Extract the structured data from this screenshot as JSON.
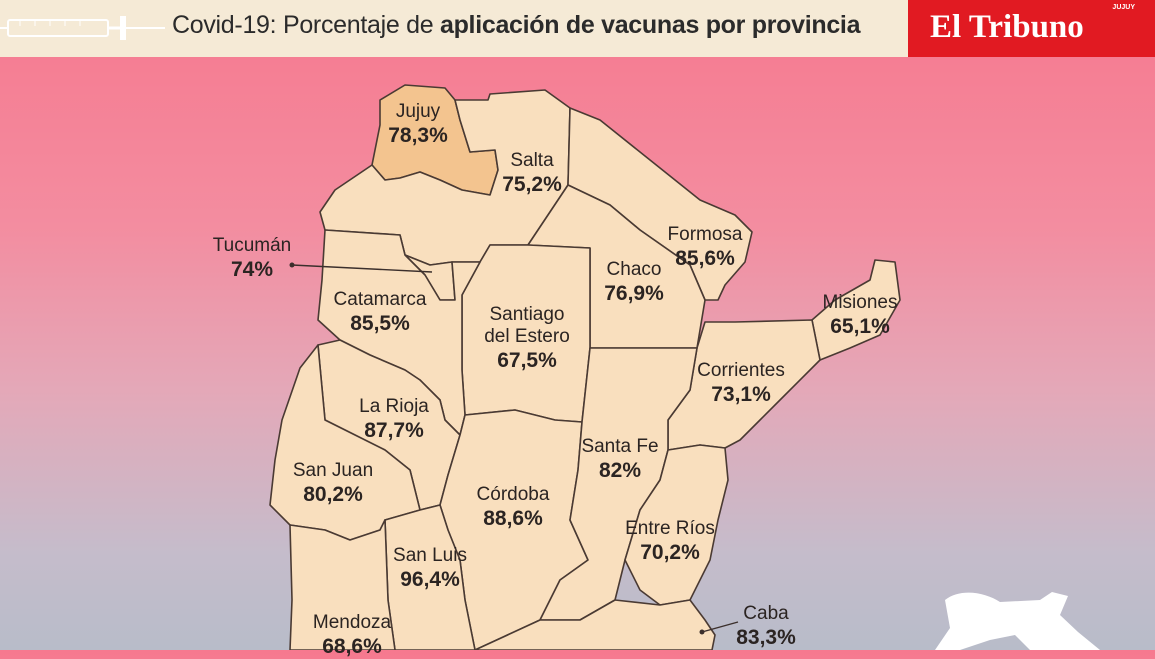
{
  "header": {
    "title_plain": "Covid-19: Porcentaje de ",
    "title_bold": "aplicación de vacunas por provincia",
    "brand": "El Tribuno",
    "brand_tag": "JUJUY",
    "icon": "syringe-icon"
  },
  "colors": {
    "province_fill": "#f9dfbe",
    "highlight_fill": "#f3c48f",
    "border": "#4a3a33",
    "brand_red": "#e11a22"
  },
  "provinces": [
    {
      "name": "Jujuy",
      "pct": "78,3%",
      "highlight": true
    },
    {
      "name": "Salta",
      "pct": "75,2%"
    },
    {
      "name": "Formosa",
      "pct": "85,6%"
    },
    {
      "name": "Chaco",
      "pct": "76,9%"
    },
    {
      "name": "Misiones",
      "pct": "65,1%"
    },
    {
      "name": "Tucumán",
      "pct": "74%"
    },
    {
      "name": "Catamarca",
      "pct": "85,5%"
    },
    {
      "name": "Santiago",
      "name2": "del Estero",
      "pct": "67,5%"
    },
    {
      "name": "Corrientes",
      "pct": "73,1%"
    },
    {
      "name": "La Rioja",
      "pct": "87,7%"
    },
    {
      "name": "Santa Fe",
      "pct": "82%"
    },
    {
      "name": "San Juan",
      "pct": "80,2%"
    },
    {
      "name": "Córdoba",
      "pct": "88,6%"
    },
    {
      "name": "Entre Ríos",
      "pct": "70,2%"
    },
    {
      "name": "San Luis",
      "pct": "96,4%"
    },
    {
      "name": "Mendoza",
      "pct": "68,6%"
    },
    {
      "name": "Caba",
      "pct": "83,3%"
    }
  ]
}
